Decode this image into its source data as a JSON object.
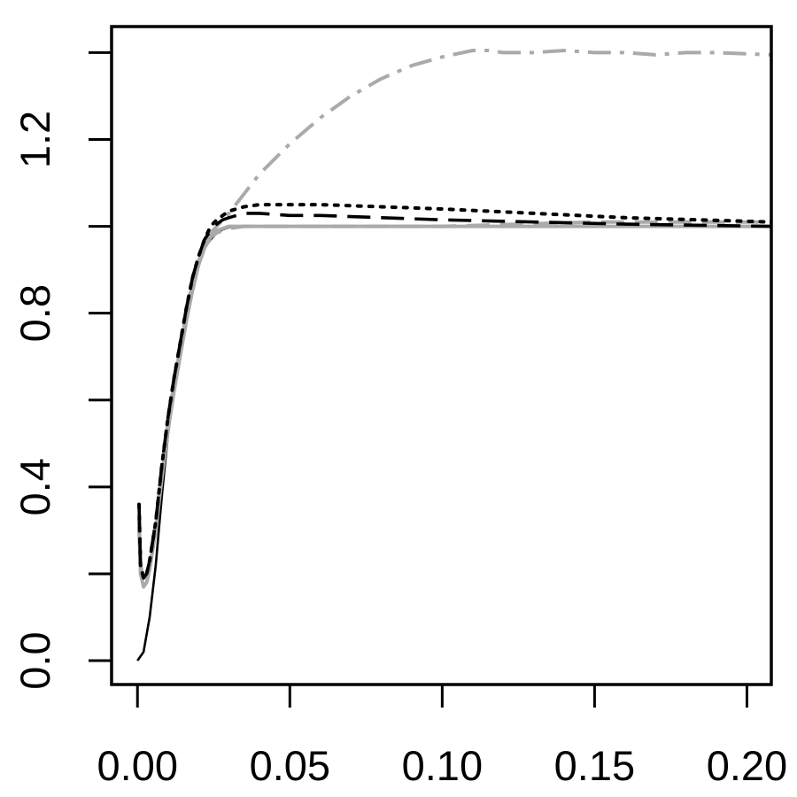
{
  "chart_data": {
    "type": "line",
    "title": "",
    "xlabel": "",
    "ylabel": "",
    "xlim": [
      -0.0085,
      0.208
    ],
    "ylim": [
      -0.055,
      1.46
    ],
    "x_ticks": [
      0.0,
      0.05,
      0.1,
      0.15,
      0.2
    ],
    "x_tick_labels": [
      "0.00",
      "0.05",
      "0.10",
      "0.15",
      "0.20"
    ],
    "y_ticks": [
      0.0,
      0.2,
      0.4,
      0.6,
      0.8,
      1.0,
      1.2,
      1.4
    ],
    "y_tick_labels": [
      "0.0",
      "",
      "0.4",
      "",
      "0.8",
      "",
      "1.2",
      ""
    ],
    "grid": false,
    "legend": "none",
    "series": [
      {
        "color": "#000000",
        "dash": "solid",
        "width": 2.6,
        "x": [
          0.0,
          0.002,
          0.004,
          0.006,
          0.008,
          0.01,
          0.012,
          0.014,
          0.016,
          0.018,
          0.02,
          0.022,
          0.024,
          0.026,
          0.028,
          0.03,
          0.035,
          0.04,
          0.06,
          0.1,
          0.15,
          0.208
        ],
        "y": [
          0.0,
          0.02,
          0.1,
          0.22,
          0.38,
          0.52,
          0.62,
          0.71,
          0.79,
          0.86,
          0.92,
          0.95,
          0.97,
          0.985,
          0.993,
          0.998,
          1.0,
          1.0,
          1.0,
          1.0,
          1.0,
          1.0
        ]
      },
      {
        "color": "#aaaaaa",
        "dash": "solid",
        "width": 4,
        "x": [
          0.0005,
          0.001,
          0.002,
          0.003,
          0.004,
          0.006,
          0.008,
          0.01,
          0.012,
          0.014,
          0.016,
          0.018,
          0.02,
          0.022,
          0.024,
          0.026,
          0.028,
          0.03,
          0.035,
          0.04,
          0.06,
          0.1,
          0.15,
          0.208
        ],
        "y": [
          0.3,
          0.2,
          0.17,
          0.18,
          0.21,
          0.3,
          0.42,
          0.53,
          0.62,
          0.7,
          0.78,
          0.85,
          0.91,
          0.95,
          0.975,
          0.99,
          0.995,
          1.0,
          1.0,
          1.0,
          1.0,
          1.0,
          1.0,
          1.0
        ]
      },
      {
        "color": "#aaaaaa",
        "dash": "longdash",
        "width": 4,
        "x": [
          0.0005,
          0.001,
          0.002,
          0.003,
          0.004,
          0.006,
          0.008,
          0.01,
          0.012,
          0.014,
          0.016,
          0.018,
          0.02,
          0.022,
          0.024,
          0.026,
          0.028,
          0.03,
          0.035,
          0.04,
          0.06,
          0.1,
          0.15,
          0.208
        ],
        "y": [
          0.32,
          0.21,
          0.18,
          0.19,
          0.22,
          0.31,
          0.43,
          0.54,
          0.63,
          0.71,
          0.79,
          0.86,
          0.92,
          0.955,
          0.975,
          0.985,
          0.99,
          0.995,
          1.0,
          1.0,
          1.0,
          1.0,
          1.01,
          1.01
        ]
      },
      {
        "color": "#aaaaaa",
        "dash": "dashdot",
        "width": 4,
        "x": [
          0.0005,
          0.001,
          0.002,
          0.003,
          0.004,
          0.006,
          0.008,
          0.01,
          0.012,
          0.014,
          0.016,
          0.018,
          0.02,
          0.022,
          0.024,
          0.026,
          0.028,
          0.03,
          0.04,
          0.05,
          0.06,
          0.07,
          0.08,
          0.09,
          0.1,
          0.11,
          0.115,
          0.12,
          0.13,
          0.14,
          0.15,
          0.16,
          0.17,
          0.18,
          0.19,
          0.208
        ],
        "y": [
          0.33,
          0.22,
          0.19,
          0.2,
          0.23,
          0.32,
          0.44,
          0.55,
          0.64,
          0.72,
          0.8,
          0.87,
          0.93,
          0.96,
          0.985,
          1.0,
          1.015,
          1.03,
          1.12,
          1.19,
          1.25,
          1.3,
          1.34,
          1.37,
          1.39,
          1.405,
          1.405,
          1.4,
          1.4,
          1.405,
          1.4,
          1.4,
          1.395,
          1.4,
          1.4,
          1.395
        ]
      },
      {
        "color": "#000000",
        "dash": "longdash",
        "width": 3.6,
        "x": [
          0.0005,
          0.001,
          0.002,
          0.003,
          0.004,
          0.006,
          0.008,
          0.01,
          0.012,
          0.014,
          0.016,
          0.018,
          0.02,
          0.022,
          0.024,
          0.026,
          0.028,
          0.03,
          0.035,
          0.04,
          0.05,
          0.06,
          0.08,
          0.1,
          0.13,
          0.16,
          0.208
        ],
        "y": [
          0.36,
          0.22,
          0.19,
          0.2,
          0.23,
          0.32,
          0.45,
          0.56,
          0.65,
          0.73,
          0.81,
          0.88,
          0.93,
          0.97,
          0.99,
          1.005,
          1.015,
          1.02,
          1.03,
          1.03,
          1.025,
          1.025,
          1.02,
          1.015,
          1.01,
          1.005,
          1.0
        ]
      },
      {
        "color": "#000000",
        "dash": "dotted",
        "width": 4,
        "x": [
          0.0005,
          0.001,
          0.002,
          0.003,
          0.004,
          0.006,
          0.008,
          0.01,
          0.012,
          0.014,
          0.016,
          0.018,
          0.02,
          0.022,
          0.024,
          0.026,
          0.028,
          0.03,
          0.035,
          0.04,
          0.05,
          0.06,
          0.08,
          0.1,
          0.13,
          0.16,
          0.208
        ],
        "y": [
          0.36,
          0.22,
          0.19,
          0.2,
          0.23,
          0.32,
          0.45,
          0.56,
          0.65,
          0.73,
          0.81,
          0.88,
          0.93,
          0.97,
          1.0,
          1.015,
          1.025,
          1.035,
          1.045,
          1.05,
          1.05,
          1.05,
          1.045,
          1.04,
          1.03,
          1.02,
          1.01
        ]
      }
    ]
  }
}
